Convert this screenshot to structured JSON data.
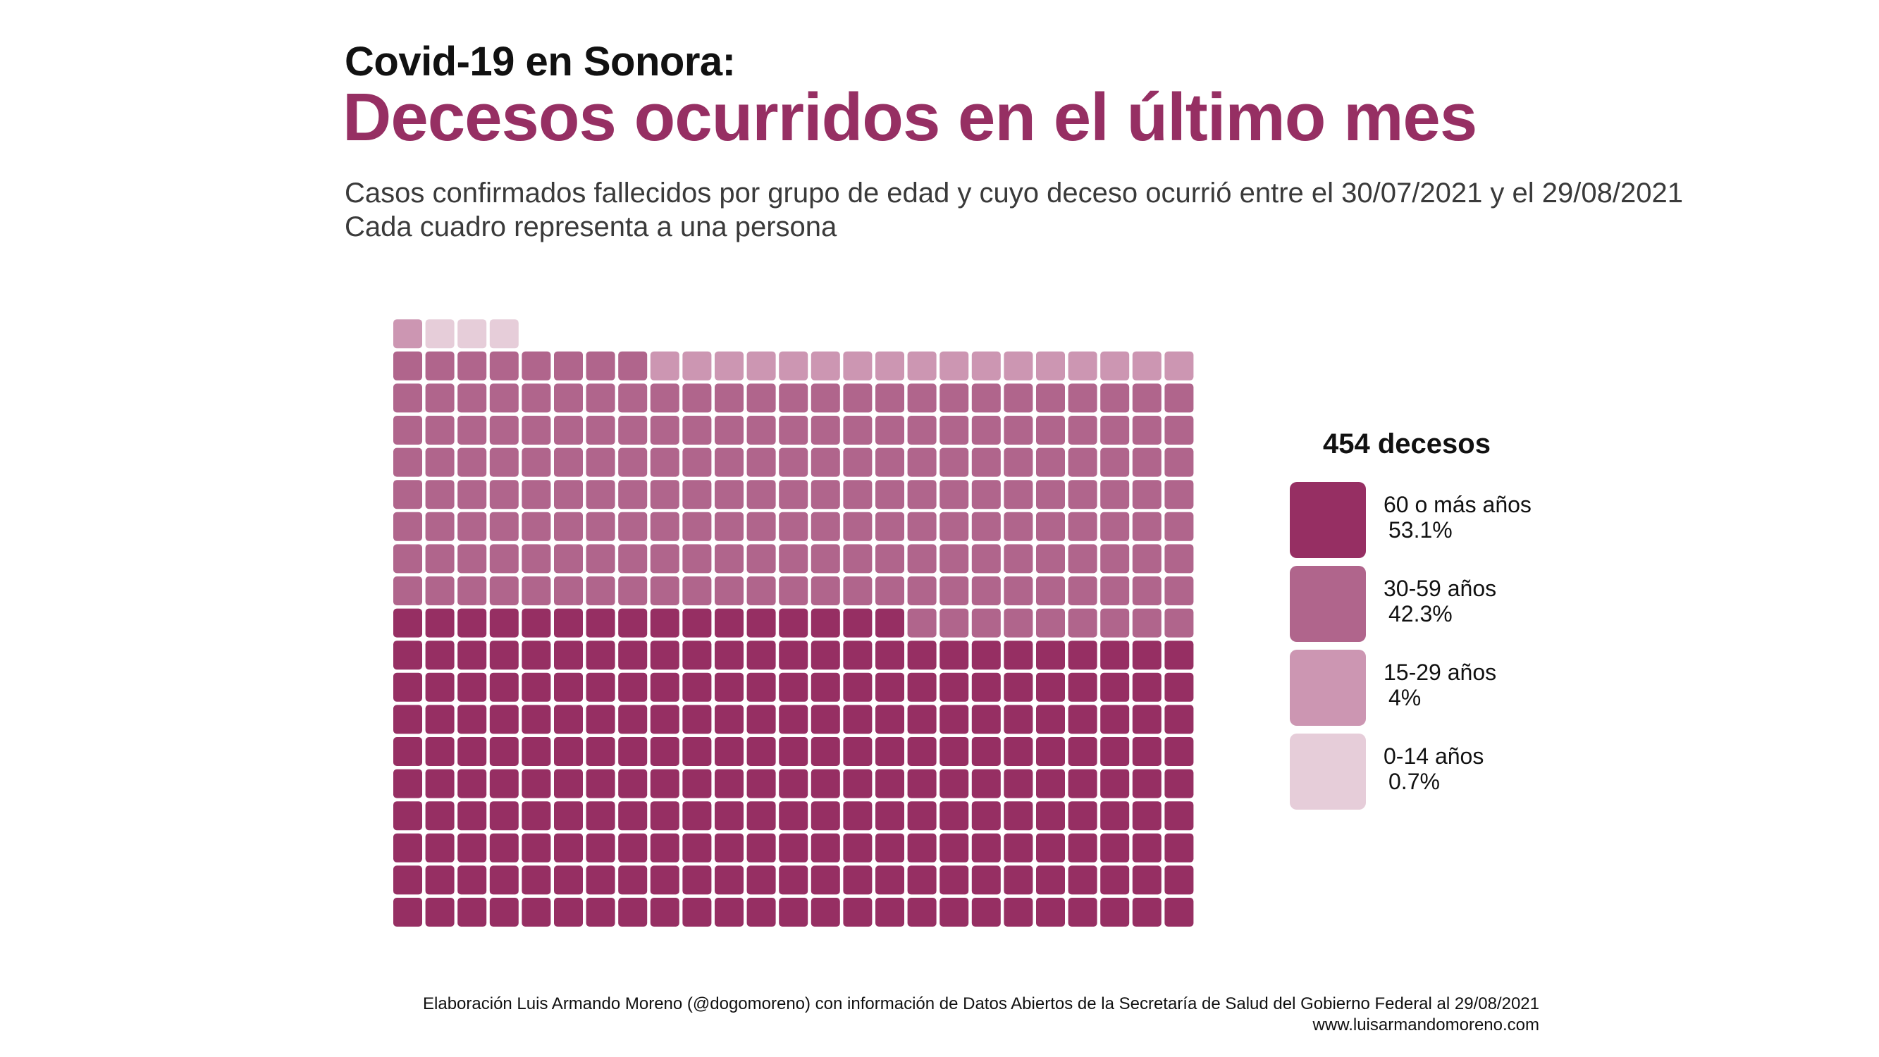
{
  "header": {
    "kicker": "Covid-19 en Sonora:",
    "title": "Decesos ocurridos en el último mes",
    "subtitle_line1": "Casos confirmados fallecidos por grupo de edad y cuyo deceso ocurrió entre el 30/07/2021 y el 29/08/2021",
    "subtitle_line2": "Cada cuadro representa a una persona"
  },
  "legend": {
    "title": "454 decesos",
    "items": [
      {
        "label": "60 o más años",
        "pct": "53.1%",
        "color": "#962f63"
      },
      {
        "label": "30-59 años",
        "pct": "42.3%",
        "color": "#b0658c"
      },
      {
        "label": "15-29 años",
        "pct": "4%",
        "color": "#cc96b2"
      },
      {
        "label": "0-14 años",
        "pct": "0.7%",
        "color": "#e6cdd9"
      }
    ]
  },
  "chart_data": {
    "type": "waffle",
    "total": 454,
    "unit": "Cada cuadro representa a una persona",
    "columns": 25,
    "series": [
      {
        "name": "60 o más años",
        "value": 241,
        "percent": 53.1,
        "color": "#962f63"
      },
      {
        "name": "30-59 años",
        "value": 192,
        "percent": 42.3,
        "color": "#b0658c"
      },
      {
        "name": "15-29 años",
        "value": 18,
        "percent": 4.0,
        "color": "#cc96b2"
      },
      {
        "name": "0-14 años",
        "value": 3,
        "percent": 0.7,
        "color": "#e6cdd9"
      }
    ]
  },
  "footer": {
    "credit": "Elaboración Luis Armando Moreno (@dogomoreno) con información de Datos Abiertos de la Secretaría de Salud del Gobierno Federal al 29/08/2021",
    "website": "www.luisarmandomoreno.com"
  }
}
